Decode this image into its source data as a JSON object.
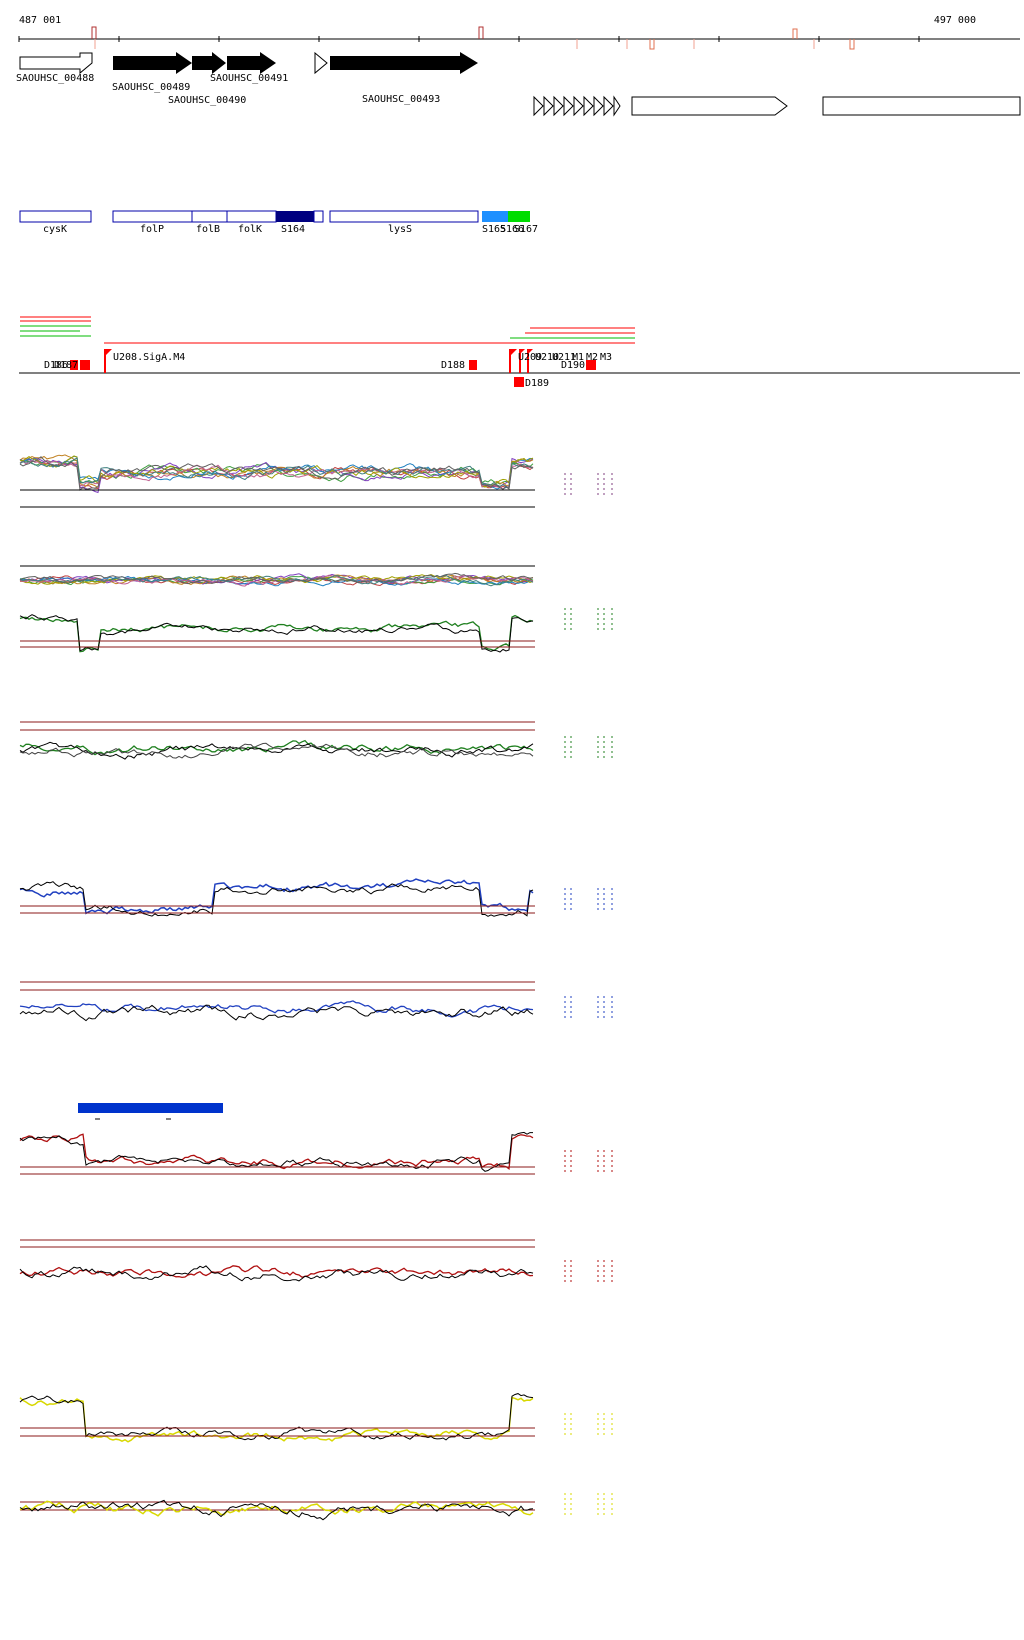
{
  "coordinates": {
    "start_label": "487 001",
    "end_label": "497 000"
  },
  "genes": {
    "labels": [
      "SAOUHSC_00488",
      "SAOUHSC_00489",
      "SAOUHSC_00490",
      "SAOUHSC_00491",
      "SAOUHSC_00493"
    ]
  },
  "operons": {
    "labels": [
      "cysK",
      "folP",
      "folB",
      "folK",
      "S164",
      "lysS",
      "S165",
      "S166",
      "S167"
    ]
  },
  "promoters": {
    "labels": [
      "D186",
      "D187",
      "U208.SigA.M4",
      "D188",
      "D189",
      "D190",
      "U209",
      "U210",
      "U211",
      "M1",
      "M2",
      "M3"
    ]
  },
  "colors": {
    "gene_fill": "#000000",
    "operon_border": "#0000aa",
    "operon_dark": "#000080",
    "operon_cyan": "#1e90ff",
    "operon_green": "#00dd00",
    "promoter": "#ff0000",
    "track_blue": "#2040c0",
    "track_green": "#208020",
    "track_red": "#b01010",
    "track_yellow": "#d8d800",
    "threshold": "#8b1a1a"
  }
}
